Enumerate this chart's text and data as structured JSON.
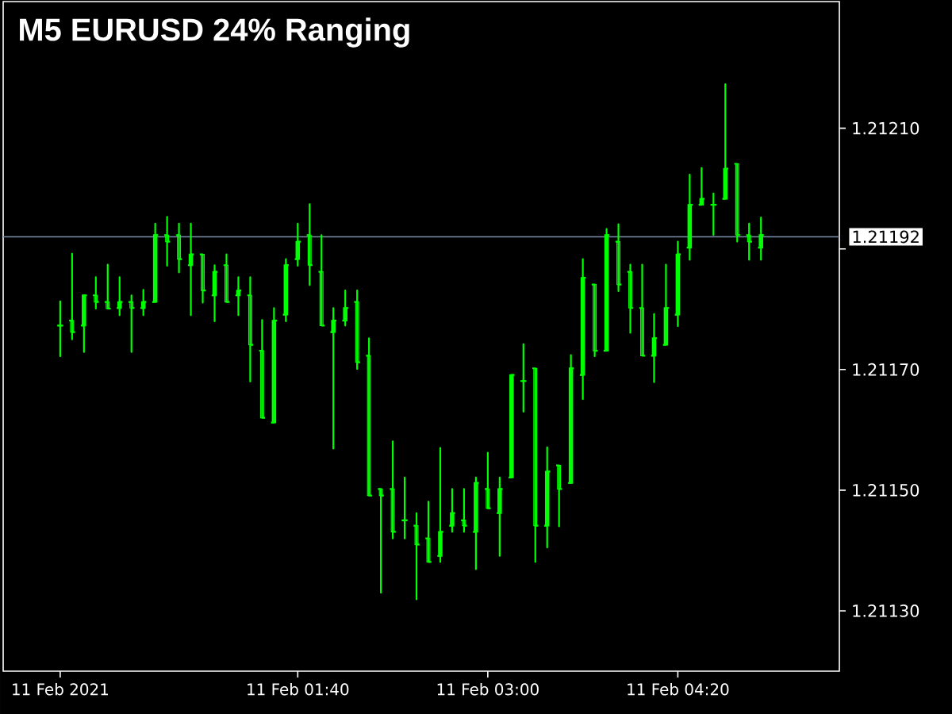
{
  "chart_data": {
    "type": "candlestick",
    "title": "M5 EURUSD 24% Ranging",
    "color": "#00ff00",
    "x": [
      "2021-02-11T00:00",
      "2021-02-11T00:05",
      "2021-02-11T00:10",
      "2021-02-11T00:15",
      "2021-02-11T00:20",
      "2021-02-11T00:25",
      "2021-02-11T00:30",
      "2021-02-11T00:35",
      "2021-02-11T00:40",
      "2021-02-11T00:45",
      "2021-02-11T00:50",
      "2021-02-11T00:55",
      "2021-02-11T01:00",
      "2021-02-11T01:05",
      "2021-02-11T01:10",
      "2021-02-11T01:15",
      "2021-02-11T01:20",
      "2021-02-11T01:25",
      "2021-02-11T01:30",
      "2021-02-11T01:35",
      "2021-02-11T01:40",
      "2021-02-11T01:45",
      "2021-02-11T01:50",
      "2021-02-11T01:55",
      "2021-02-11T02:00",
      "2021-02-11T02:05",
      "2021-02-11T02:10",
      "2021-02-11T02:15",
      "2021-02-11T02:20",
      "2021-02-11T02:25",
      "2021-02-11T02:30",
      "2021-02-11T02:35",
      "2021-02-11T02:40",
      "2021-02-11T02:45",
      "2021-02-11T02:50",
      "2021-02-11T02:55",
      "2021-02-11T03:00",
      "2021-02-11T03:05",
      "2021-02-11T03:10",
      "2021-02-11T03:15",
      "2021-02-11T03:20",
      "2021-02-11T03:25",
      "2021-02-11T03:30",
      "2021-02-11T03:35",
      "2021-02-11T03:40",
      "2021-02-11T03:45",
      "2021-02-11T03:50",
      "2021-02-11T03:55",
      "2021-02-11T04:00",
      "2021-02-11T04:05",
      "2021-02-11T04:10",
      "2021-02-11T04:15",
      "2021-02-11T04:20",
      "2021-02-11T04:25",
      "2021-02-11T04:30",
      "2021-02-11T04:35",
      "2021-02-11T04:40",
      "2021-02-11T04:45",
      "2021-02-11T04:50",
      "2021-02-11T04:55"
    ],
    "ohlc": [
      [
        1.211773,
        1.211813,
        1.211722,
        1.211773
      ],
      [
        1.211781,
        1.211892,
        1.21175,
        1.211762
      ],
      [
        1.211773,
        1.211823,
        1.211729,
        1.211823
      ],
      [
        1.211823,
        1.211853,
        1.211801,
        1.211812
      ],
      [
        1.211812,
        1.211874,
        1.211801,
        1.211801
      ],
      [
        1.211802,
        1.211853,
        1.21179,
        1.211812
      ],
      [
        1.211812,
        1.211823,
        1.211729,
        1.211802
      ],
      [
        1.211802,
        1.211832,
        1.21179,
        1.211812
      ],
      [
        1.211812,
        1.211942,
        1.211812,
        1.211923
      ],
      [
        1.211923,
        1.211953,
        1.211872,
        1.211912
      ],
      [
        1.211923,
        1.211942,
        1.211861,
        1.211883
      ],
      [
        1.211873,
        1.211942,
        1.21179,
        1.211891
      ],
      [
        1.211891,
        1.211891,
        1.211811,
        1.211831
      ],
      [
        1.211823,
        1.211873,
        1.21178,
        1.211862
      ],
      [
        1.211873,
        1.211891,
        1.211812,
        1.211812
      ],
      [
        1.211823,
        1.211853,
        1.21179,
        1.211831
      ],
      [
        1.211823,
        1.211853,
        1.21168,
        1.211741
      ],
      [
        1.211731,
        1.211782,
        1.21162,
        1.21162
      ],
      [
        1.211612,
        1.211802,
        1.211612,
        1.211781
      ],
      [
        1.211791,
        1.211883,
        1.21178,
        1.211873
      ],
      [
        1.211883,
        1.211942,
        1.211872,
        1.211912
      ],
      [
        1.211923,
        1.211974,
        1.21184,
        1.211873
      ],
      [
        1.211862,
        1.211923,
        1.211773,
        1.211773
      ],
      [
        1.211762,
        1.211802,
        1.211569,
        1.211781
      ],
      [
        1.211781,
        1.211831,
        1.211773,
        1.211802
      ],
      [
        1.211812,
        1.211831,
        1.211701,
        1.211712
      ],
      [
        1.211723,
        1.211752,
        1.211491,
        1.211491
      ],
      [
        1.211502,
        1.211502,
        1.21133,
        1.211491
      ],
      [
        1.211502,
        1.211581,
        1.21142,
        1.211431
      ],
      [
        1.21145,
        1.211521,
        1.21142,
        1.21145
      ],
      [
        1.211441,
        1.211462,
        1.211319,
        1.21141
      ],
      [
        1.21142,
        1.211481,
        1.211381,
        1.211381
      ],
      [
        1.211391,
        1.21157,
        1.211381,
        1.211431
      ],
      [
        1.211441,
        1.211502,
        1.211431,
        1.211462
      ],
      [
        1.21145,
        1.211502,
        1.211431,
        1.211441
      ],
      [
        1.211431,
        1.211521,
        1.211369,
        1.211512
      ],
      [
        1.211502,
        1.211562,
        1.21147,
        1.21147
      ],
      [
        1.211462,
        1.211521,
        1.211391,
        1.211502
      ],
      [
        1.211521,
        1.211691,
        1.211521,
        1.211691
      ],
      [
        1.211681,
        1.211742,
        1.21163,
        1.211681
      ],
      [
        1.211702,
        1.211702,
        1.211381,
        1.211441
      ],
      [
        1.211441,
        1.211571,
        1.211405,
        1.211531
      ],
      [
        1.211541,
        1.211541,
        1.21144,
        1.211502
      ],
      [
        1.211512,
        1.211724,
        1.211512,
        1.211702
      ],
      [
        1.211691,
        1.211883,
        1.211651,
        1.211852
      ],
      [
        1.211841,
        1.211841,
        1.211722,
        1.211731
      ],
      [
        1.211731,
        1.211933,
        1.211731,
        1.211923
      ],
      [
        1.211912,
        1.211941,
        1.21183,
        1.211841
      ],
      [
        1.211862,
        1.211874,
        1.211761,
        1.211802
      ],
      [
        1.211802,
        1.211874,
        1.211723,
        1.211723
      ],
      [
        1.211723,
        1.211792,
        1.211679,
        1.211752
      ],
      [
        1.211741,
        1.211874,
        1.211741,
        1.211802
      ],
      [
        1.211791,
        1.211912,
        1.211772,
        1.211891
      ],
      [
        1.211902,
        1.212023,
        1.211882,
        1.211973
      ],
      [
        1.211973,
        1.212034,
        1.211973,
        1.211983
      ],
      [
        1.211973,
        1.211992,
        1.211923,
        1.211973
      ],
      [
        1.211983,
        1.212173,
        1.211983,
        1.212033
      ],
      [
        1.212041,
        1.212041,
        1.211912,
        1.211923
      ],
      [
        1.211923,
        1.211942,
        1.211882,
        1.211912
      ],
      [
        1.211902,
        1.211952,
        1.211882,
        1.211923
      ]
    ],
    "xlim": [
      "2021-02-10T23:36",
      "2021-02-11T05:28"
    ],
    "ylim": [
      1.2112,
      1.21231
    ],
    "xticks": [
      {
        "value": "2021-02-11T00:00",
        "label": "11 Feb 2021"
      },
      {
        "value": "2021-02-11T01:40",
        "label": "11 Feb 01:40"
      },
      {
        "value": "2021-02-11T03:00",
        "label": "11 Feb 03:00"
      },
      {
        "value": "2021-02-11T04:20",
        "label": "11 Feb 04:20"
      }
    ],
    "yticks": [
      {
        "value": 1.2113,
        "label": "1.21130"
      },
      {
        "value": 1.2115,
        "label": "1.21150"
      },
      {
        "value": 1.2117,
        "label": "1.21170"
      },
      {
        "value": 1.2119,
        "label": null
      },
      {
        "value": 1.2121,
        "label": "1.21210"
      }
    ],
    "ref_lines": [
      {
        "axis": "y",
        "value": 1.21192,
        "label": "1.21192",
        "color": "#7b8aa6"
      }
    ]
  }
}
